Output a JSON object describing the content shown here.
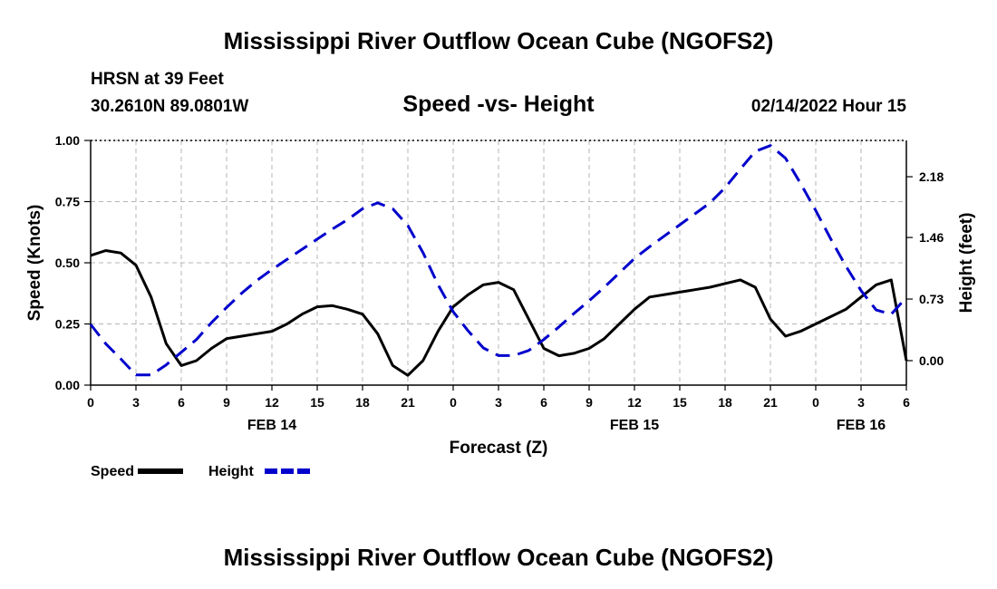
{
  "page_title": "Mississippi River Outflow Ocean Cube (NGOFS2)",
  "footer_title": "Mississippi River Outflow Ocean Cube (NGOFS2)",
  "station": {
    "name_line": "HRSN at 39 Feet",
    "coords_line": "30.2610N  89.0801W"
  },
  "datetime": "02/14/2022 Hour 15",
  "chart_data": {
    "type": "line",
    "title": "Speed -vs- Height",
    "xlabel": "Forecast (Z)",
    "ylabel": "Speed (Knots)",
    "y2label": "Height (feet)",
    "x_range": [
      0,
      54
    ],
    "x_ticks": [
      0,
      3,
      6,
      9,
      12,
      15,
      18,
      21,
      24,
      27,
      30,
      33,
      36,
      39,
      42,
      45,
      48,
      51,
      54
    ],
    "x_tick_labels": [
      "0",
      "3",
      "6",
      "9",
      "12",
      "15",
      "18",
      "21",
      "0",
      "3",
      "6",
      "9",
      "12",
      "15",
      "18",
      "21",
      "0",
      "3",
      "6"
    ],
    "date_labels": [
      {
        "label": "FEB 14",
        "at_hour": 12
      },
      {
        "label": "FEB 15",
        "at_hour": 36
      },
      {
        "label": "FEB 16",
        "at_hour": 51
      }
    ],
    "ylim": [
      0,
      1
    ],
    "y_ticks": [
      0,
      0.25,
      0.5,
      0.75,
      1.0
    ],
    "y_tick_labels": [
      "0.00",
      "0.25",
      "0.50",
      "0.75",
      "1.00"
    ],
    "y2lim": [
      -0.29,
      2.61
    ],
    "y2_ticks": [
      0,
      0.73,
      1.46,
      2.18
    ],
    "y2_tick_labels": [
      "0.00",
      "0.73",
      "1.46",
      "2.18"
    ],
    "series": [
      {
        "name": "Speed",
        "axis": "left",
        "color": "#000000",
        "style": "solid",
        "points": [
          [
            0,
            0.53
          ],
          [
            1,
            0.55
          ],
          [
            2,
            0.54
          ],
          [
            3,
            0.49
          ],
          [
            4,
            0.36
          ],
          [
            5,
            0.17
          ],
          [
            6,
            0.08
          ],
          [
            7,
            0.1
          ],
          [
            8,
            0.15
          ],
          [
            9,
            0.19
          ],
          [
            10,
            0.2
          ],
          [
            11,
            0.21
          ],
          [
            12,
            0.22
          ],
          [
            13,
            0.25
          ],
          [
            14,
            0.29
          ],
          [
            15,
            0.32
          ],
          [
            16,
            0.325
          ],
          [
            17,
            0.31
          ],
          [
            18,
            0.29
          ],
          [
            19,
            0.21
          ],
          [
            20,
            0.08
          ],
          [
            21,
            0.04
          ],
          [
            22,
            0.1
          ],
          [
            23,
            0.22
          ],
          [
            24,
            0.32
          ],
          [
            25,
            0.37
          ],
          [
            26,
            0.41
          ],
          [
            27,
            0.42
          ],
          [
            28,
            0.39
          ],
          [
            29,
            0.27
          ],
          [
            30,
            0.15
          ],
          [
            31,
            0.12
          ],
          [
            32,
            0.13
          ],
          [
            33,
            0.15
          ],
          [
            34,
            0.19
          ],
          [
            35,
            0.25
          ],
          [
            36,
            0.31
          ],
          [
            37,
            0.36
          ],
          [
            38,
            0.37
          ],
          [
            39,
            0.38
          ],
          [
            40,
            0.39
          ],
          [
            41,
            0.4
          ],
          [
            42,
            0.415
          ],
          [
            43,
            0.43
          ],
          [
            44,
            0.4
          ],
          [
            45,
            0.27
          ],
          [
            46,
            0.2
          ],
          [
            47,
            0.22
          ],
          [
            48,
            0.25
          ],
          [
            49,
            0.28
          ],
          [
            50,
            0.31
          ],
          [
            51,
            0.36
          ],
          [
            52,
            0.41
          ],
          [
            53,
            0.43
          ],
          [
            54,
            0.1
          ]
        ]
      },
      {
        "name": "Height",
        "axis": "right",
        "color": "#0000cc",
        "style": "dashed",
        "points": [
          [
            0,
            0.43
          ],
          [
            1,
            0.2
          ],
          [
            2,
            0.02
          ],
          [
            3,
            -0.17
          ],
          [
            4,
            -0.17
          ],
          [
            5,
            -0.05
          ],
          [
            6,
            0.1
          ],
          [
            7,
            0.25
          ],
          [
            8,
            0.45
          ],
          [
            9,
            0.63
          ],
          [
            10,
            0.8
          ],
          [
            11,
            0.95
          ],
          [
            12,
            1.08
          ],
          [
            13,
            1.2
          ],
          [
            14,
            1.32
          ],
          [
            15,
            1.44
          ],
          [
            16,
            1.56
          ],
          [
            17,
            1.67
          ],
          [
            18,
            1.8
          ],
          [
            19,
            1.87
          ],
          [
            20,
            1.8
          ],
          [
            21,
            1.6
          ],
          [
            22,
            1.28
          ],
          [
            23,
            0.9
          ],
          [
            24,
            0.58
          ],
          [
            25,
            0.35
          ],
          [
            26,
            0.15
          ],
          [
            27,
            0.06
          ],
          [
            28,
            0.06
          ],
          [
            29,
            0.12
          ],
          [
            30,
            0.25
          ],
          [
            31,
            0.4
          ],
          [
            32,
            0.56
          ],
          [
            33,
            0.71
          ],
          [
            34,
            0.87
          ],
          [
            35,
            1.04
          ],
          [
            36,
            1.21
          ],
          [
            37,
            1.35
          ],
          [
            38,
            1.48
          ],
          [
            39,
            1.61
          ],
          [
            40,
            1.74
          ],
          [
            41,
            1.87
          ],
          [
            42,
            2.05
          ],
          [
            43,
            2.27
          ],
          [
            44,
            2.48
          ],
          [
            45,
            2.55
          ],
          [
            46,
            2.4
          ],
          [
            47,
            2.1
          ],
          [
            48,
            1.78
          ],
          [
            49,
            1.44
          ],
          [
            50,
            1.12
          ],
          [
            51,
            0.83
          ],
          [
            52,
            0.6
          ],
          [
            53,
            0.55
          ],
          [
            54,
            0.75
          ]
        ]
      }
    ],
    "legend": [
      {
        "label": "Speed",
        "color": "#000000",
        "style": "solid"
      },
      {
        "label": "Height",
        "color": "#0000cc",
        "style": "dashed"
      }
    ],
    "grid": true
  }
}
